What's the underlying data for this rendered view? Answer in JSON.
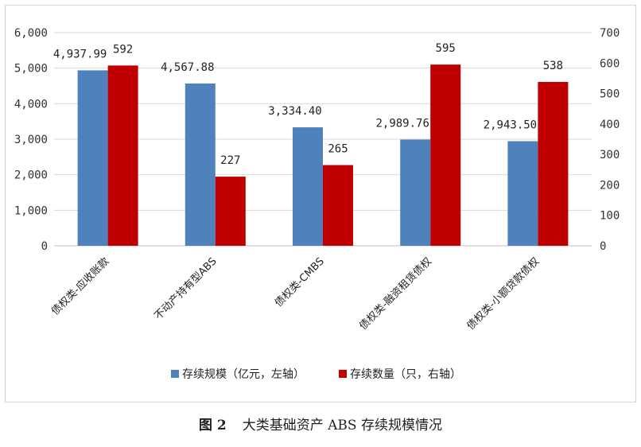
{
  "chart_data": {
    "type": "bar",
    "categories": [
      "债权类-应收账款",
      "不动产持有型ABS",
      "债权类-CMBS",
      "债权类-融资租赁债权",
      "债权类-小额贷款债权"
    ],
    "series": [
      {
        "name": "存续规模（亿元，左轴）",
        "axis": "left",
        "color": "#4f81bd",
        "values": [
          4937.99,
          4567.88,
          3334.4,
          2989.76,
          2943.5
        ],
        "labels": [
          "4,937.99",
          "4,567.88",
          "3,334.40",
          "2,989.76",
          "2,943.50"
        ]
      },
      {
        "name": "存续数量（只，右轴）",
        "axis": "right",
        "color": "#c00000",
        "values": [
          592,
          227,
          265,
          595,
          538
        ],
        "labels": [
          "592",
          "227",
          "265",
          "595",
          "538"
        ]
      }
    ],
    "y_left": {
      "min": 0,
      "max": 6000,
      "ticks": [
        "0",
        "1,000",
        "2,000",
        "3,000",
        "4,000",
        "5,000",
        "6,000"
      ]
    },
    "y_right": {
      "min": 0,
      "max": 700,
      "ticks": [
        "0",
        "100",
        "200",
        "300",
        "400",
        "500",
        "600",
        "700"
      ]
    },
    "grid": true,
    "legend_position": "bottom"
  },
  "caption": {
    "figure_number": "图 2",
    "title": "大类基础资产 ABS 存续规模情况"
  }
}
